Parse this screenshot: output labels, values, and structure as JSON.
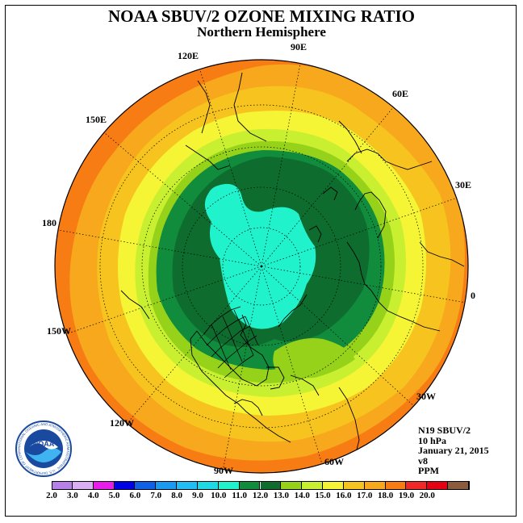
{
  "title": "NOAA SBUV/2 OZONE MIXING RATIO",
  "subtitle": "Northern Hemisphere",
  "longitude_labels": [
    "90E",
    "60E",
    "30E",
    "0",
    "30W",
    "60W",
    "90W",
    "120W",
    "150W",
    "180",
    "150E",
    "120E"
  ],
  "info": {
    "instrument": "N19 SBUV/2",
    "level": "10 hPa",
    "date": "January 21, 2015",
    "version": "v8",
    "units": "PPM"
  },
  "logo": {
    "text": "NOAA",
    "ring_text": "NATIONAL OCEANIC AND ATMOSPHERIC ADMINISTRATION · U.S. DEPARTMENT OF COMMERCE"
  },
  "colorbar": {
    "labels": [
      "2.0",
      "3.0",
      "4.0",
      "5.0",
      "6.0",
      "7.0",
      "8.0",
      "9.0",
      "10.0",
      "11.0",
      "12.0",
      "13.0",
      "14.0",
      "15.0",
      "16.0",
      "17.0",
      "18.0",
      "19.0",
      "20.0"
    ],
    "colors": [
      "#b77fe8",
      "#d9aef2",
      "#e81ce8",
      "#0000e6",
      "#1060e6",
      "#1a9af0",
      "#22bdf2",
      "#1fd8e6",
      "#20f2cc",
      "#108c3c",
      "#0e6c2e",
      "#96d21a",
      "#c8f030",
      "#f5f535",
      "#f7c31e",
      "#f7a81c",
      "#f77c14",
      "#f02828",
      "#e60014",
      "#8c5a3c"
    ],
    "values_ppm_per_box": [
      2,
      3,
      4,
      5,
      6,
      7,
      8,
      9,
      10,
      11,
      12,
      13,
      14,
      15,
      16,
      17,
      18,
      19,
      20
    ]
  }
}
